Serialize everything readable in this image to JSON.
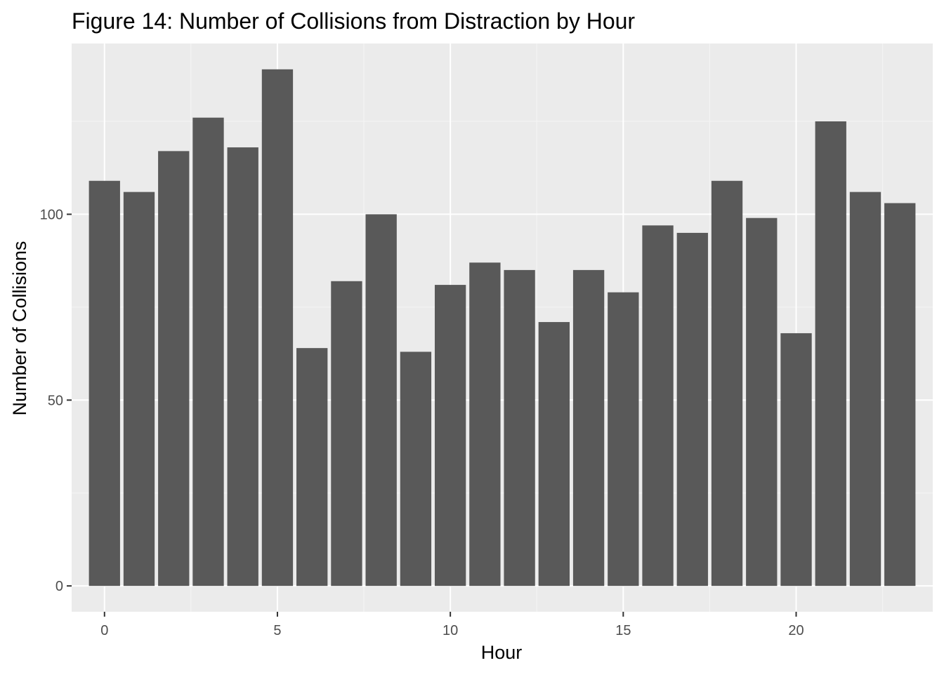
{
  "chart_data": {
    "type": "bar",
    "title": "Figure 14: Number of Collisions from Distraction by Hour",
    "xlabel": "Hour",
    "ylabel": "Number of Collisions",
    "categories": [
      0,
      1,
      2,
      3,
      4,
      5,
      6,
      7,
      8,
      9,
      10,
      11,
      12,
      13,
      14,
      15,
      16,
      17,
      18,
      19,
      20,
      21,
      22,
      23
    ],
    "values": [
      109,
      106,
      117,
      126,
      118,
      139,
      64,
      82,
      100,
      63,
      81,
      87,
      85,
      71,
      85,
      79,
      97,
      95,
      109,
      99,
      68,
      125,
      106,
      103
    ],
    "xlim": [
      -0.95,
      23.95
    ],
    "ylim": [
      -6.95,
      145.95
    ],
    "x_ticks": [
      0,
      5,
      10,
      15,
      20
    ],
    "x_tick_labels": [
      "0",
      "5",
      "10",
      "15",
      "20"
    ],
    "y_ticks": [
      0,
      50,
      100
    ],
    "y_tick_labels": [
      "0",
      "50",
      "100"
    ],
    "grid": true,
    "legend": "none",
    "colors": {
      "bar": "#595959",
      "panel": "#ebebeb",
      "grid_major": "#ffffff",
      "grid_minor": "#f5f5f5",
      "tick": "#333333"
    }
  }
}
